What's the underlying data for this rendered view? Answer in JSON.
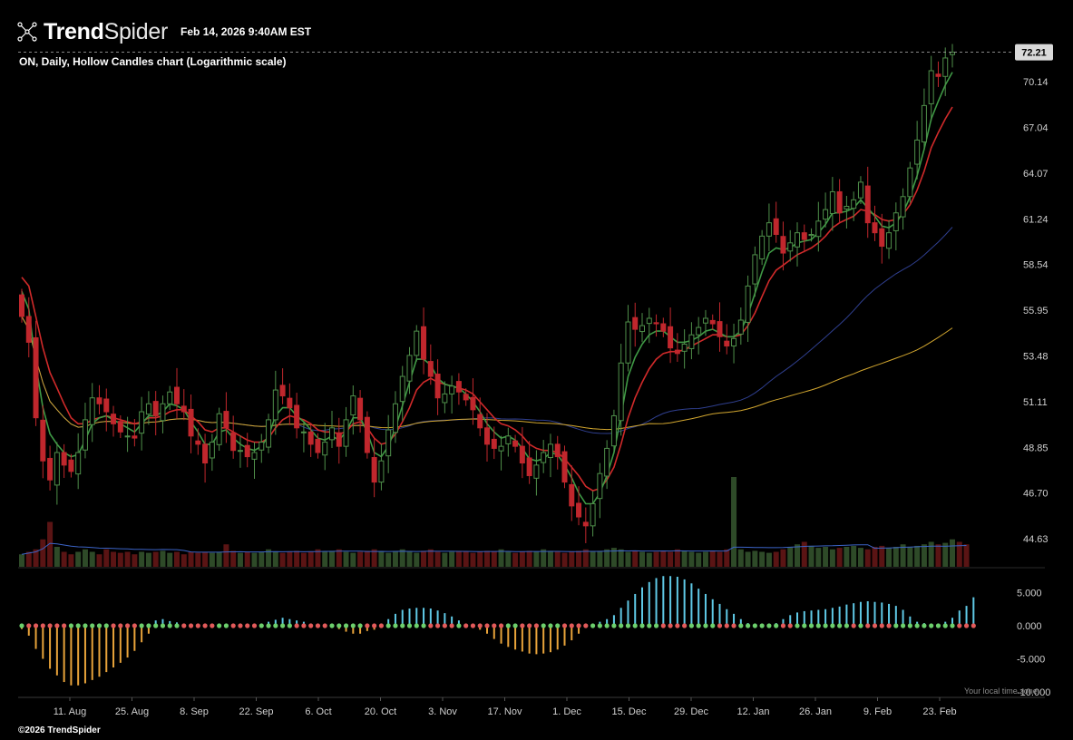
{
  "header": {
    "brand_bold": "Trend",
    "brand_light": "Spider",
    "timestamp": "Feb 14, 2026 9:40AM EST",
    "logo_icon": "spider-network-icon"
  },
  "chart_title": "ON, Daily, Hollow Candles chart (Logarithmic scale)",
  "footer": {
    "copyright": "©2026 TrendSpider",
    "timezone_note": "Your local time zone"
  },
  "colors": {
    "up": "#4f8f4a",
    "down": "#c0272d",
    "ema_fast": "#3f9a45",
    "ema_slow": "#d02a2a",
    "sma_blue": "#2f3f8f",
    "sma_yellow": "#d3a72f",
    "vol_up": "#2e4a28",
    "vol_down": "#5a1414",
    "vol_avg": "#3b63c6",
    "osc_up": "#5fc9e6",
    "osc_down": "#e8a33a",
    "dot_green": "#6ccf6c",
    "dot_red": "#e25a5a"
  },
  "chart_data": {
    "type": "candlestick",
    "symbol": "ON",
    "interval": "Daily",
    "scale": "logarithmic",
    "last_price": "72.21",
    "price_ticks": [
      "70.14",
      "67.04",
      "64.07",
      "61.24",
      "58.54",
      "55.95",
      "53.48",
      "51.11",
      "48.85",
      "46.70",
      "44.63"
    ],
    "oscillator_ticks": [
      "5.000",
      "0.000",
      "-5.000",
      "-10.000"
    ],
    "x_tick_labels": [
      "11. Aug",
      "25. Aug",
      "8. Sep",
      "22. Sep",
      "6. Oct",
      "20. Oct",
      "3. Nov",
      "17. Nov",
      "1. Dec",
      "15. Dec",
      "29. Dec",
      "12. Jan",
      "26. Jan",
      "9. Feb",
      "23. Feb"
    ],
    "close": [
      55.6,
      54.2,
      50.3,
      48.2,
      47.3,
      48.6,
      48.0,
      47.7,
      48.6,
      50.2,
      51.3,
      51.0,
      50.6,
      50.0,
      49.6,
      49.4,
      49.3,
      50.6,
      51.0,
      50.4,
      51.0,
      51.6,
      51.0,
      50.6,
      49.4,
      49.0,
      48.1,
      49.1,
      50.5,
      49.8,
      48.7,
      48.7,
      48.4,
      48.6,
      49.1,
      50.2,
      51.7,
      51.4,
      50.8,
      49.8,
      49.6,
      49.0,
      48.6,
      49.1,
      49.8,
      48.9,
      50.2,
      51.4,
      50.2,
      48.6,
      47.2,
      48.2,
      49.7,
      51.0,
      52.4,
      53.5,
      54.8,
      53.3,
      52.4,
      51.3,
      51.5,
      51.9,
      51.6,
      51.2,
      50.7,
      49.8,
      49.0,
      48.8,
      48.9,
      49.4,
      48.9,
      48.1,
      47.5,
      48.0,
      48.6,
      49.0,
      48.4,
      47.2,
      46.1,
      45.6,
      45.2,
      46.2,
      47.6,
      48.8,
      50.4,
      53.1,
      55.3,
      54.9,
      55.1,
      55.5,
      55.2,
      54.8,
      53.9,
      53.6,
      54.1,
      54.6,
      55.0,
      55.5,
      55.2,
      54.5,
      54.0,
      54.4,
      55.4,
      57.3,
      59.1,
      60.2,
      61.0,
      60.3,
      59.2,
      59.8,
      60.4,
      60.0,
      60.3,
      61.1,
      61.8,
      62.9,
      61.6,
      62.0,
      62.4,
      63.5,
      61.0,
      60.4,
      59.6,
      60.4,
      61.6,
      62.6,
      64.4,
      66.2,
      68.5,
      70.9,
      70.5,
      71.8,
      72.21
    ],
    "ema_fast_values": [
      57.0,
      56.0,
      53.0,
      50.8,
      49.5,
      49.0,
      48.6,
      48.4,
      48.5,
      49.2,
      50.0,
      50.3,
      50.4,
      50.2,
      50.0,
      49.8,
      49.6,
      50.0,
      50.4,
      50.4,
      50.6,
      51.0,
      50.9,
      50.7,
      50.1,
      49.6,
      49.0,
      49.0,
      49.6,
      49.7,
      49.3,
      49.0,
      48.8,
      48.7,
      48.9,
      49.4,
      50.4,
      50.8,
      50.8,
      50.4,
      50.1,
      49.7,
      49.3,
      49.2,
      49.4,
      49.2,
      49.6,
      50.3,
      50.3,
      49.6,
      48.6,
      48.4,
      48.9,
      49.8,
      50.9,
      52.1,
      53.3,
      53.3,
      53.0,
      52.3,
      52.0,
      51.9,
      51.8,
      51.5,
      51.1,
      50.6,
      50.0,
      49.6,
      49.3,
      49.4,
      49.2,
      48.8,
      48.3,
      48.2,
      48.3,
      48.6,
      48.5,
      48.0,
      47.4,
      46.7,
      46.2,
      46.2,
      46.7,
      47.5,
      48.6,
      50.4,
      52.4,
      53.4,
      54.1,
      54.6,
      54.8,
      54.8,
      54.5,
      54.2,
      54.2,
      54.3,
      54.5,
      54.8,
      54.9,
      54.7,
      54.5,
      54.5,
      54.8,
      55.7,
      56.9,
      58.1,
      59.2,
      59.5,
      59.4,
      59.5,
      59.8,
      59.9,
      60.0,
      60.4,
      60.9,
      61.6,
      61.6,
      61.7,
      61.9,
      62.4,
      61.9,
      61.4,
      60.8,
      60.7,
      61.0,
      61.6,
      62.6,
      63.9,
      65.6,
      67.6,
      68.8,
      69.9,
      70.8
    ],
    "ema_slow_values": [
      57.8,
      57.3,
      55.6,
      53.9,
      52.6,
      51.8,
      51.0,
      50.3,
      50.0,
      50.0,
      50.2,
      50.3,
      50.4,
      50.3,
      50.2,
      50.1,
      50.0,
      50.1,
      50.3,
      50.3,
      50.4,
      50.6,
      50.7,
      50.7,
      50.4,
      50.1,
      49.7,
      49.6,
      49.8,
      49.8,
      49.6,
      49.4,
      49.2,
      49.1,
      49.1,
      49.3,
      49.8,
      50.2,
      50.4,
      50.3,
      50.2,
      50.0,
      49.7,
      49.6,
      49.6,
      49.5,
      49.6,
      50.0,
      50.1,
      49.8,
      49.3,
      49.0,
      49.1,
      49.5,
      50.1,
      50.8,
      51.7,
      52.1,
      52.3,
      52.1,
      52.0,
      51.9,
      51.8,
      51.7,
      51.5,
      51.1,
      50.7,
      50.3,
      50.0,
      49.9,
      49.7,
      49.4,
      49.0,
      48.8,
      48.7,
      48.7,
      48.6,
      48.3,
      47.9,
      47.5,
      47.0,
      46.8,
      46.9,
      47.3,
      47.9,
      49.0,
      50.3,
      51.3,
      52.1,
      52.8,
      53.3,
      53.6,
      53.7,
      53.7,
      53.8,
      54.0,
      54.2,
      54.4,
      54.6,
      54.6,
      54.5,
      54.5,
      54.6,
      55.1,
      55.8,
      56.7,
      57.6,
      58.2,
      58.5,
      58.8,
      59.1,
      59.3,
      59.5,
      59.8,
      60.2,
      60.7,
      61.0,
      61.2,
      61.4,
      61.8,
      61.7,
      61.5,
      61.2,
      61.1,
      61.2,
      61.5,
      62.1,
      63.0,
      64.2,
      65.7,
      66.7,
      67.6,
      68.4
    ]
  },
  "volume_profile": {
    "values": [
      0.25,
      0.3,
      0.35,
      0.55,
      0.9,
      0.4,
      0.3,
      0.25,
      0.3,
      0.35,
      0.3,
      0.25,
      0.35,
      0.3,
      0.28,
      0.3,
      0.25,
      0.3,
      0.28,
      0.3,
      0.32,
      0.28,
      0.3,
      0.25,
      0.3,
      0.28,
      0.3,
      0.28,
      0.3,
      0.45,
      0.32,
      0.28,
      0.3,
      0.28,
      0.3,
      0.35,
      0.3,
      0.28,
      0.3,
      0.32,
      0.28,
      0.3,
      0.35,
      0.3,
      0.32,
      0.35,
      0.3,
      0.28,
      0.3,
      0.32,
      0.35,
      0.3,
      0.28,
      0.3,
      0.35,
      0.3,
      0.28,
      0.32,
      0.35,
      0.3,
      0.28,
      0.3,
      0.32,
      0.3,
      0.28,
      0.3,
      0.32,
      0.3,
      0.35,
      0.3,
      0.28,
      0.3,
      0.32,
      0.3,
      0.35,
      0.32,
      0.3,
      0.28,
      0.3,
      0.32,
      0.35,
      0.3,
      0.32,
      0.35,
      0.38,
      0.35,
      0.3,
      0.32,
      0.3,
      0.28,
      0.3,
      0.32,
      0.3,
      0.35,
      0.32,
      0.3,
      0.28,
      0.3,
      0.32,
      0.3,
      0.35,
      1.8,
      0.35,
      0.3,
      0.32,
      0.3,
      0.28,
      0.3,
      0.35,
      0.4,
      0.45,
      0.5,
      0.42,
      0.38,
      0.4,
      0.35,
      0.38,
      0.4,
      0.42,
      0.38,
      0.35,
      0.4,
      0.42,
      0.38,
      0.4,
      0.45,
      0.4,
      0.42,
      0.45,
      0.5,
      0.45,
      0.48,
      0.55,
      0.5,
      0.45
    ]
  },
  "oscillator": {
    "values": [
      -0.5,
      -1.5,
      -3.5,
      -5,
      -6.5,
      -7.5,
      -8.5,
      -9,
      -9,
      -8.7,
      -8.2,
      -7.7,
      -7,
      -6.3,
      -5.6,
      -4.8,
      -3.8,
      -2.5,
      -1.2,
      0.8,
      1.0,
      0.7,
      0.5,
      0.3,
      0.2,
      0.1,
      0.1,
      0.2,
      0.3,
      0.2,
      0.1,
      0.1,
      0.1,
      0.2,
      0.3,
      0.6,
      0.9,
      1.2,
      1.0,
      0.8,
      0.6,
      0.3,
      0.1,
      -0.2,
      -0.3,
      -0.5,
      -0.9,
      -1.2,
      -1.2,
      -0.8,
      -0.6,
      0.3,
      1.0,
      1.8,
      2.4,
      2.6,
      2.7,
      2.7,
      2.6,
      2.3,
      1.9,
      1.4,
      0.8,
      0.2,
      -0.2,
      -0.6,
      -1.2,
      -2.0,
      -2.7,
      -3.2,
      -3.6,
      -3.9,
      -4.2,
      -4.3,
      -4.2,
      -4.0,
      -3.6,
      -3.0,
      -2.2,
      -1.2,
      -0.2,
      0.2,
      0.6,
      1.0,
      1.6,
      2.7,
      3.8,
      4.8,
      5.8,
      6.6,
      7.2,
      7.5,
      7.5,
      7.4,
      7.0,
      6.4,
      5.6,
      4.8,
      4.0,
      3.3,
      2.5,
      1.8,
      1.0,
      0.4,
      0.1,
      -0.2,
      -0.1,
      0.4,
      1.0,
      1.6,
      2.0,
      2.2,
      2.3,
      2.4,
      2.5,
      2.7,
      2.9,
      3.2,
      3.4,
      3.6,
      3.7,
      3.6,
      3.5,
      3.3,
      3.0,
      2.4,
      1.4,
      0.6,
      0.4,
      0.2,
      0.3,
      0.6,
      1.2,
      2.3,
      3.0,
      4.3
    ]
  }
}
